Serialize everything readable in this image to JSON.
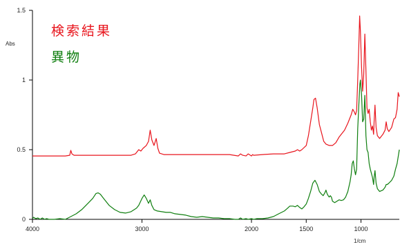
{
  "chart_data": {
    "type": "line",
    "ylabel": "Abs",
    "xlabel": "1/cm",
    "xlim": [
      4000,
      650
    ],
    "ylim": [
      0,
      1.5
    ],
    "x_ticks": [
      {
        "value": 4000,
        "label": "4000"
      },
      {
        "value": 3000,
        "label": "3000"
      },
      {
        "value": 2000,
        "label": "2000"
      },
      {
        "value": 1500,
        "label": "1500"
      },
      {
        "value": 1000,
        "label": "1000"
      }
    ],
    "y_ticks": [
      {
        "value": 0,
        "label": "0"
      },
      {
        "value": 0.5,
        "label": "0.5"
      },
      {
        "value": 1,
        "label": "1"
      },
      {
        "value": 1.5,
        "label": "1.5"
      }
    ],
    "legend_position": "top-left",
    "grid": false,
    "series": [
      {
        "name": "検索結果",
        "color": "#e8141c",
        "points": [
          [
            4000,
            0.455
          ],
          [
            3700,
            0.455
          ],
          [
            3660,
            0.46
          ],
          [
            3650,
            0.495
          ],
          [
            3640,
            0.47
          ],
          [
            3620,
            0.46
          ],
          [
            3400,
            0.46
          ],
          [
            3100,
            0.46
          ],
          [
            3060,
            0.47
          ],
          [
            3030,
            0.5
          ],
          [
            3010,
            0.49
          ],
          [
            2990,
            0.51
          ],
          [
            2960,
            0.53
          ],
          [
            2940,
            0.56
          ],
          [
            2925,
            0.64
          ],
          [
            2910,
            0.57
          ],
          [
            2890,
            0.53
          ],
          [
            2870,
            0.58
          ],
          [
            2855,
            0.51
          ],
          [
            2840,
            0.475
          ],
          [
            2800,
            0.465
          ],
          [
            2500,
            0.465
          ],
          [
            2200,
            0.465
          ],
          [
            2120,
            0.455
          ],
          [
            2100,
            0.47
          ],
          [
            2080,
            0.46
          ],
          [
            2050,
            0.455
          ],
          [
            2030,
            0.47
          ],
          [
            2000,
            0.455
          ],
          [
            1990,
            0.465
          ],
          [
            1980,
            0.46
          ],
          [
            1900,
            0.465
          ],
          [
            1800,
            0.47
          ],
          [
            1700,
            0.47
          ],
          [
            1650,
            0.48
          ],
          [
            1600,
            0.49
          ],
          [
            1580,
            0.5
          ],
          [
            1560,
            0.49
          ],
          [
            1540,
            0.5
          ],
          [
            1500,
            0.53
          ],
          [
            1480,
            0.6
          ],
          [
            1460,
            0.7
          ],
          [
            1440,
            0.8
          ],
          [
            1430,
            0.86
          ],
          [
            1415,
            0.87
          ],
          [
            1400,
            0.8
          ],
          [
            1380,
            0.68
          ],
          [
            1360,
            0.62
          ],
          [
            1340,
            0.56
          ],
          [
            1320,
            0.54
          ],
          [
            1290,
            0.53
          ],
          [
            1260,
            0.53
          ],
          [
            1230,
            0.55
          ],
          [
            1200,
            0.59
          ],
          [
            1150,
            0.64
          ],
          [
            1120,
            0.69
          ],
          [
            1090,
            0.75
          ],
          [
            1075,
            0.79
          ],
          [
            1060,
            0.77
          ],
          [
            1050,
            0.75
          ],
          [
            1040,
            0.78
          ],
          [
            1030,
            1.0
          ],
          [
            1020,
            1.25
          ],
          [
            1012,
            1.46
          ],
          [
            1005,
            1.35
          ],
          [
            995,
            1.1
          ],
          [
            985,
            0.92
          ],
          [
            975,
            1.04
          ],
          [
            965,
            1.33
          ],
          [
            955,
            1.07
          ],
          [
            945,
            0.8
          ],
          [
            935,
            0.76
          ],
          [
            925,
            0.79
          ],
          [
            915,
            0.7
          ],
          [
            905,
            0.64
          ],
          [
            895,
            0.67
          ],
          [
            885,
            0.61
          ],
          [
            880,
            0.7
          ],
          [
            872,
            0.82
          ],
          [
            862,
            0.66
          ],
          [
            850,
            0.6
          ],
          [
            830,
            0.58
          ],
          [
            800,
            0.61
          ],
          [
            780,
            0.64
          ],
          [
            770,
            0.7
          ],
          [
            760,
            0.65
          ],
          [
            745,
            0.63
          ],
          [
            720,
            0.66
          ],
          [
            700,
            0.72
          ],
          [
            685,
            0.73
          ],
          [
            670,
            0.79
          ],
          [
            660,
            0.91
          ],
          [
            650,
            0.88
          ]
        ]
      },
      {
        "name": "異物",
        "color": "#0e7e0e",
        "points": [
          [
            4000,
            0.005
          ],
          [
            3990,
            0.015
          ],
          [
            3970,
            0.005
          ],
          [
            3950,
            0.01
          ],
          [
            3930,
            0.0
          ],
          [
            3910,
            0.01
          ],
          [
            3890,
            0.0
          ],
          [
            3870,
            0.005
          ],
          [
            3850,
            0.0
          ],
          [
            3800,
            0.0
          ],
          [
            3750,
            0.005
          ],
          [
            3700,
            0.0
          ],
          [
            3650,
            0.02
          ],
          [
            3600,
            0.04
          ],
          [
            3550,
            0.07
          ],
          [
            3500,
            0.11
          ],
          [
            3450,
            0.15
          ],
          [
            3420,
            0.185
          ],
          [
            3400,
            0.19
          ],
          [
            3380,
            0.18
          ],
          [
            3350,
            0.15
          ],
          [
            3300,
            0.1
          ],
          [
            3250,
            0.07
          ],
          [
            3200,
            0.05
          ],
          [
            3150,
            0.045
          ],
          [
            3100,
            0.055
          ],
          [
            3050,
            0.08
          ],
          [
            3030,
            0.1
          ],
          [
            3000,
            0.15
          ],
          [
            2980,
            0.175
          ],
          [
            2960,
            0.15
          ],
          [
            2940,
            0.115
          ],
          [
            2925,
            0.14
          ],
          [
            2910,
            0.1
          ],
          [
            2890,
            0.07
          ],
          [
            2860,
            0.06
          ],
          [
            2820,
            0.055
          ],
          [
            2780,
            0.05
          ],
          [
            2740,
            0.05
          ],
          [
            2700,
            0.04
          ],
          [
            2650,
            0.035
          ],
          [
            2600,
            0.03
          ],
          [
            2550,
            0.02
          ],
          [
            2500,
            0.015
          ],
          [
            2450,
            0.02
          ],
          [
            2400,
            0.015
          ],
          [
            2350,
            0.01
          ],
          [
            2300,
            0.01
          ],
          [
            2250,
            0.005
          ],
          [
            2200,
            0.005
          ],
          [
            2150,
            0.0
          ],
          [
            2120,
            0.0
          ],
          [
            2100,
            0.01
          ],
          [
            2080,
            0.0
          ],
          [
            2050,
            0.005
          ],
          [
            2030,
            0.0
          ],
          [
            2000,
            0.005
          ],
          [
            1980,
            0.0
          ],
          [
            1950,
            0.005
          ],
          [
            1900,
            0.005
          ],
          [
            1850,
            0.01
          ],
          [
            1800,
            0.02
          ],
          [
            1750,
            0.04
          ],
          [
            1700,
            0.06
          ],
          [
            1670,
            0.08
          ],
          [
            1650,
            0.095
          ],
          [
            1620,
            0.095
          ],
          [
            1600,
            0.09
          ],
          [
            1580,
            0.1
          ],
          [
            1560,
            0.085
          ],
          [
            1540,
            0.075
          ],
          [
            1520,
            0.09
          ],
          [
            1500,
            0.11
          ],
          [
            1480,
            0.15
          ],
          [
            1460,
            0.2
          ],
          [
            1440,
            0.26
          ],
          [
            1420,
            0.28
          ],
          [
            1400,
            0.25
          ],
          [
            1380,
            0.2
          ],
          [
            1360,
            0.18
          ],
          [
            1345,
            0.17
          ],
          [
            1330,
            0.19
          ],
          [
            1320,
            0.21
          ],
          [
            1310,
            0.185
          ],
          [
            1300,
            0.17
          ],
          [
            1290,
            0.16
          ],
          [
            1280,
            0.17
          ],
          [
            1270,
            0.16
          ],
          [
            1260,
            0.13
          ],
          [
            1240,
            0.12
          ],
          [
            1220,
            0.13
          ],
          [
            1200,
            0.14
          ],
          [
            1180,
            0.135
          ],
          [
            1160,
            0.14
          ],
          [
            1140,
            0.16
          ],
          [
            1120,
            0.2
          ],
          [
            1100,
            0.27
          ],
          [
            1090,
            0.32
          ],
          [
            1080,
            0.4
          ],
          [
            1070,
            0.42
          ],
          [
            1060,
            0.36
          ],
          [
            1050,
            0.32
          ],
          [
            1040,
            0.36
          ],
          [
            1030,
            0.65
          ],
          [
            1020,
            0.82
          ],
          [
            1010,
            0.97
          ],
          [
            1005,
            1.0
          ],
          [
            995,
            0.9
          ],
          [
            985,
            0.7
          ],
          [
            975,
            0.72
          ],
          [
            965,
            0.89
          ],
          [
            955,
            0.6
          ],
          [
            945,
            0.5
          ],
          [
            935,
            0.48
          ],
          [
            925,
            0.4
          ],
          [
            915,
            0.36
          ],
          [
            905,
            0.33
          ],
          [
            895,
            0.3
          ],
          [
            885,
            0.25
          ],
          [
            880,
            0.3
          ],
          [
            872,
            0.35
          ],
          [
            862,
            0.26
          ],
          [
            850,
            0.22
          ],
          [
            830,
            0.2
          ],
          [
            800,
            0.21
          ],
          [
            780,
            0.23
          ],
          [
            770,
            0.25
          ],
          [
            760,
            0.25
          ],
          [
            745,
            0.26
          ],
          [
            720,
            0.28
          ],
          [
            700,
            0.31
          ],
          [
            685,
            0.36
          ],
          [
            670,
            0.4
          ],
          [
            660,
            0.45
          ],
          [
            650,
            0.5
          ]
        ]
      }
    ]
  }
}
